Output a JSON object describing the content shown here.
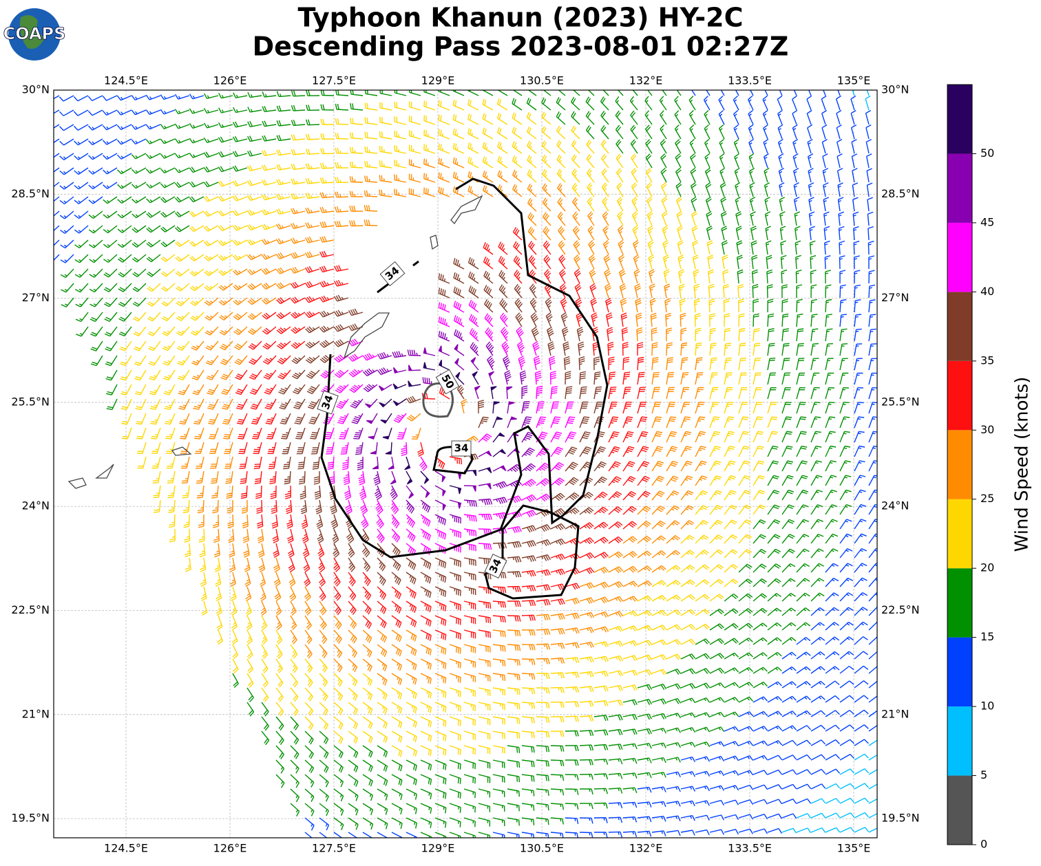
{
  "map": {
    "logo": "COAPS",
    "title": "Typhoon Khanun (2023) HY-2C",
    "subtitle": "Descending Pass 2023-08-01 02:27Z",
    "lon_ticks": [
      {
        "value": 124.5,
        "label": "124.5°E"
      },
      {
        "value": 126,
        "label": "126°E"
      },
      {
        "value": 127.5,
        "label": "127.5°E"
      },
      {
        "value": 129,
        "label": "129°E"
      },
      {
        "value": 130.5,
        "label": "130.5°E"
      },
      {
        "value": 132,
        "label": "132°E"
      },
      {
        "value": 133.5,
        "label": "133.5°E"
      },
      {
        "value": 135,
        "label": "135°E"
      }
    ],
    "lat_ticks": [
      {
        "value": 30,
        "label": "30°N"
      },
      {
        "value": 28.5,
        "label": "28.5°N"
      },
      {
        "value": 27,
        "label": "27°N"
      },
      {
        "value": 25.5,
        "label": "25.5°N"
      },
      {
        "value": 24,
        "label": "24°N"
      },
      {
        "value": 22.5,
        "label": "22.5°N"
      },
      {
        "value": 21,
        "label": "21°N"
      },
      {
        "value": 19.5,
        "label": "19.5°N"
      }
    ],
    "contour_labels": [
      34,
      34,
      34,
      34,
      50
    ],
    "colorbar": {
      "label": "Wind Speed (knots)",
      "clim": [
        0,
        55
      ],
      "ticks": [
        0,
        5,
        10,
        15,
        20,
        25,
        30,
        35,
        40,
        45,
        50
      ],
      "colors": [
        "#555555",
        "#00bfff",
        "#0040ff",
        "#009000",
        "#ffd700",
        "#ff8c00",
        "#ff1010",
        "#803c28",
        "#ff00ff",
        "#8800b0",
        "#2a0060"
      ]
    }
  }
}
